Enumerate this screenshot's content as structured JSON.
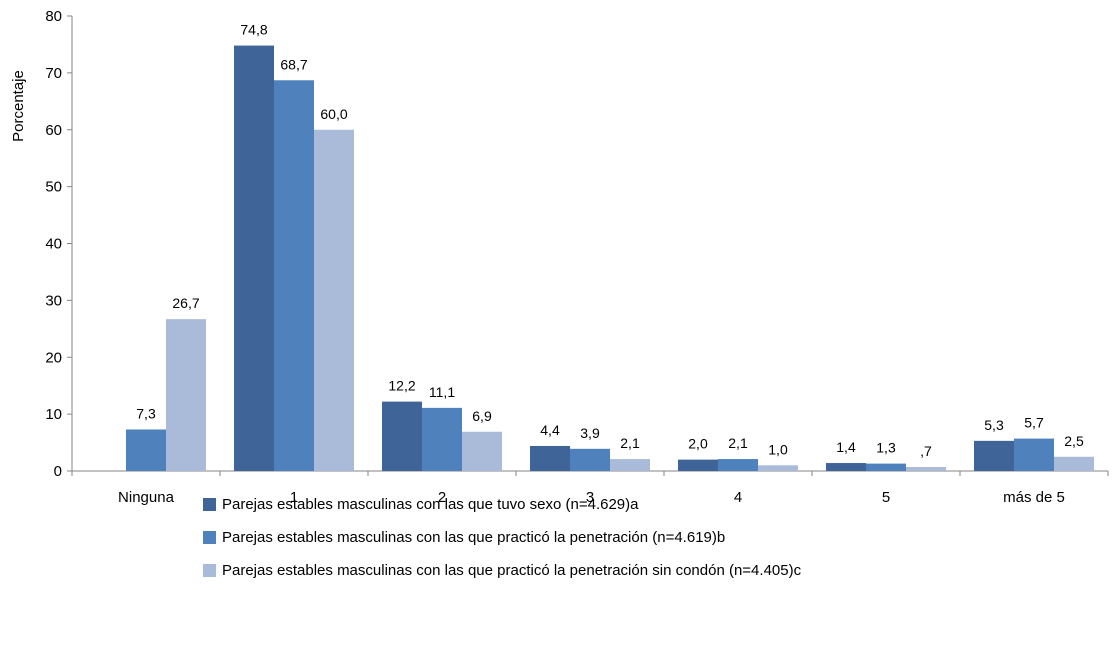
{
  "chart_data": {
    "type": "bar",
    "ylabel": "Porcentaje",
    "xlabel": "",
    "ylim": [
      0,
      80
    ],
    "ytick_step": 10,
    "categories": [
      "Ninguna",
      "1",
      "2",
      "3",
      "4",
      "5",
      "más de 5"
    ],
    "series": [
      {
        "name": "Parejas estables masculinas con las que tuvo sexo (n=4.629)a",
        "color": "#3F6598",
        "values": [
          null,
          74.8,
          12.2,
          4.4,
          2.0,
          1.4,
          5.3
        ],
        "labels": [
          "",
          "74,8",
          "12,2",
          "4,4",
          "2,0",
          "1,4",
          "5,3"
        ]
      },
      {
        "name": "Parejas estables masculinas con las que practicó la penetración  (n=4.619)b",
        "color": "#4F81BD",
        "values": [
          7.3,
          68.7,
          11.1,
          3.9,
          2.1,
          1.3,
          5.7
        ],
        "labels": [
          "7,3",
          "68,7",
          "11,1",
          "3,9",
          "2,1",
          "1,3",
          "5,7"
        ]
      },
      {
        "name": "Parejas estables masculinas con las que practicó la penetración sin condón  (n=4.405)c",
        "color": "#AABBD9",
        "values": [
          26.7,
          60.0,
          6.9,
          2.1,
          1.0,
          0.7,
          2.5
        ],
        "labels": [
          "26,7",
          "60,0",
          "6,9",
          "2,1",
          "1,0",
          ",7",
          "2,5"
        ]
      }
    ],
    "legend_position": "bottom",
    "grid": false
  }
}
